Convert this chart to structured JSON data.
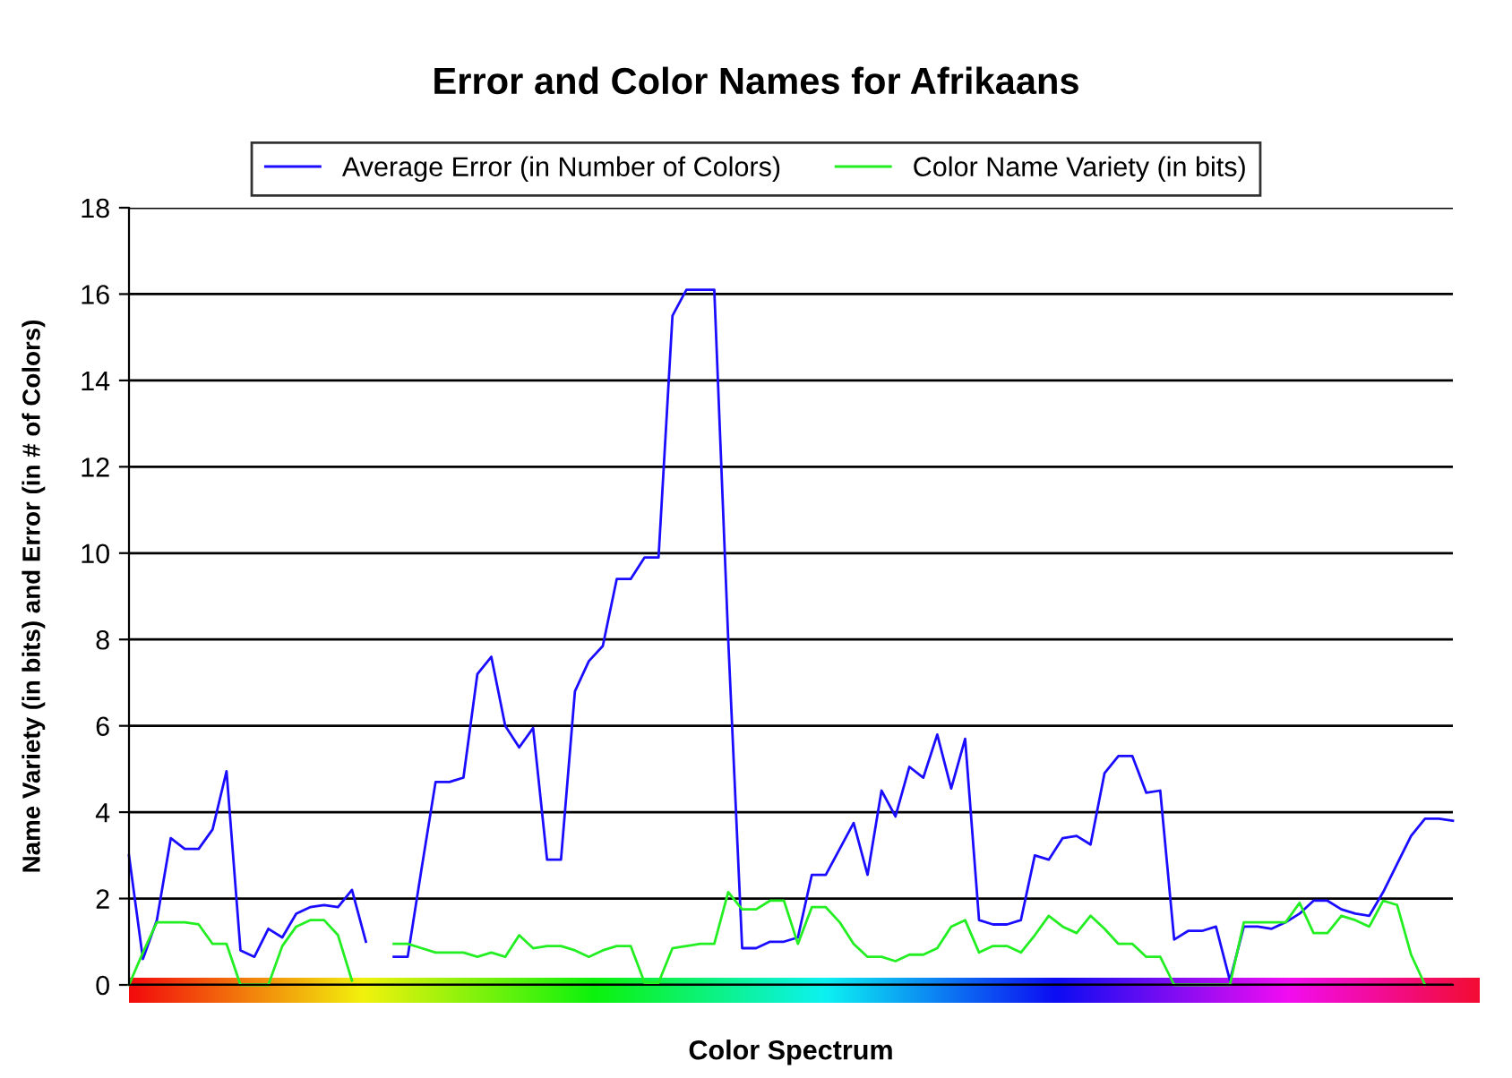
{
  "chart_data": {
    "type": "line",
    "title": "Error and Color Names for Afrikaans",
    "xlabel": "Color Spectrum",
    "ylabel": "Name Variety (in bits) and Error (in # of Colors)",
    "categories": [
      null,
      null,
      null,
      null,
      null,
      null,
      null,
      null,
      null,
      null,
      null,
      null,
      null,
      null,
      null,
      null,
      null,
      null,
      null,
      null,
      null,
      null,
      null,
      null,
      null,
      null,
      null,
      null,
      null,
      null,
      null,
      null,
      null,
      null,
      null,
      null,
      null,
      null,
      null,
      null,
      null,
      null,
      null,
      null,
      null,
      null,
      null,
      null,
      null,
      null,
      null,
      null,
      null,
      null,
      null,
      null,
      null,
      null,
      null,
      null,
      null,
      null,
      null,
      null,
      null,
      null,
      null,
      null,
      null,
      null,
      null,
      null,
      null,
      null,
      null,
      null,
      null,
      null,
      null,
      null,
      null,
      null,
      null,
      null,
      null,
      null,
      null,
      null,
      null,
      null,
      null,
      null,
      null,
      null,
      null,
      null
    ],
    "series": [
      {
        "name": "Average Error (in Number of Colors)",
        "color": "#1a0dff",
        "values": [
          null,
          null,
          null,
          null,
          null,
          null,
          null,
          null,
          null,
          null,
          null,
          null,
          null,
          null,
          null,
          null,
          null,
          null,
          null,
          0.65,
          0.65,
          2.7,
          4.7,
          4.7,
          4.8,
          7.2,
          7.6,
          6.0,
          5.5,
          5.95,
          2.9,
          2.9,
          6.8,
          7.5,
          7.85,
          9.4,
          9.4,
          9.9,
          9.9,
          15.5,
          16.1,
          16.1,
          16.1,
          8.0,
          0.85,
          0.85,
          1.0,
          1.0,
          1.1,
          2.55,
          2.55,
          3.15,
          3.75,
          2.55,
          4.5,
          3.9,
          5.05,
          4.8,
          5.8,
          4.55,
          5.7,
          1.5,
          1.4,
          1.4,
          1.5,
          3.0,
          2.9,
          3.4,
          3.45,
          3.25,
          4.9,
          5.3,
          5.3,
          4.45,
          4.5,
          1.05,
          1.25,
          1.25,
          1.35,
          0.1,
          1.35,
          1.35,
          1.3,
          1.45,
          1.65,
          1.95,
          1.95,
          1.75,
          1.65,
          1.6,
          2.15,
          2.8,
          3.45,
          3.85,
          3.85,
          3.8
        ]
      },
      {
        "name": "Color Name Variety (in bits)",
        "color": "#22ee22",
        "values": [
          null,
          null,
          null,
          null,
          null,
          null,
          null,
          null,
          null,
          null,
          null,
          null,
          null,
          null,
          null,
          null,
          null,
          null,
          null,
          0.95,
          0.95,
          0.85,
          0.75,
          0.75,
          0.75,
          0.65,
          0.75,
          0.65,
          1.15,
          0.85,
          0.9,
          0.9,
          0.8,
          0.65,
          0.8,
          0.9,
          0.9,
          0.05,
          0.05,
          0.85,
          0.9,
          0.95,
          0.95,
          2.15,
          1.75,
          1.75,
          1.95,
          1.95,
          0.95,
          1.8,
          1.8,
          1.45,
          0.95,
          0.65,
          0.65,
          0.55,
          0.7,
          0.7,
          0.85,
          1.35,
          1.5,
          0.75,
          0.9,
          0.9,
          0.75,
          1.15,
          1.6,
          1.35,
          1.2,
          1.6,
          1.3,
          0.95,
          0.95,
          0.65,
          0.65,
          0.0,
          0.0,
          0.0,
          0.0,
          0.0,
          1.45,
          1.45,
          1.45,
          1.45,
          1.9,
          1.2,
          1.2,
          1.6,
          1.5,
          1.35,
          1.95,
          1.85,
          0.7,
          0.0,
          null,
          null
        ]
      },
      {
        "color": "#1a0dff",
        "values": [
          3.0,
          0.6,
          1.5,
          3.4,
          3.15,
          3.15,
          3.6,
          4.95,
          0.8,
          0.65,
          1.3,
          1.1,
          1.65,
          1.8,
          1.85,
          1.8,
          2.2,
          1.0,
          null,
          null,
          null,
          null,
          null,
          null,
          null,
          null,
          null,
          null,
          null,
          null,
          null,
          null,
          null,
          null,
          null,
          null,
          null,
          null,
          null,
          null,
          null,
          null,
          null,
          null,
          null,
          null,
          null,
          null,
          null,
          null,
          null,
          null,
          null,
          null,
          null,
          null,
          null,
          null,
          null,
          null,
          null,
          null,
          null,
          null,
          null,
          null,
          null,
          null,
          null,
          null,
          null,
          null,
          null,
          null,
          null,
          null,
          null,
          null,
          null,
          null,
          null,
          null,
          null,
          null,
          null,
          null,
          null,
          null,
          null,
          null,
          null,
          null,
          null,
          null,
          null,
          null
        ]
      },
      {
        "color": "#22ee22",
        "values": [
          0.0,
          0.75,
          1.45,
          1.45,
          1.45,
          1.4,
          0.95,
          0.95,
          0.0,
          0.0,
          0.0,
          0.9,
          1.35,
          1.5,
          1.5,
          1.15,
          0.1,
          null,
          null,
          null,
          null,
          null,
          null,
          null,
          null,
          null,
          null,
          null,
          null,
          null,
          null,
          null,
          null,
          null,
          null,
          null,
          null,
          null,
          null,
          null,
          null,
          null,
          null,
          null,
          null,
          null,
          null,
          null,
          null,
          null,
          null,
          null,
          null,
          null,
          null,
          null,
          null,
          null,
          null,
          null,
          null,
          null,
          null,
          null,
          null,
          null,
          null,
          null,
          null,
          null,
          null,
          null,
          null,
          null,
          null,
          null,
          null,
          null,
          null,
          null,
          null,
          null,
          null,
          null,
          null,
          null,
          null,
          null,
          null,
          null,
          null,
          null,
          null,
          null,
          null,
          null
        ]
      }
    ],
    "ylim": [
      0,
      18
    ],
    "yticks": [
      0,
      2,
      4,
      6,
      8,
      10,
      12,
      14,
      16,
      18
    ],
    "grid": "y",
    "legend": "top",
    "tick_labels": "y",
    "marker": "none",
    "line_style": "solid"
  }
}
